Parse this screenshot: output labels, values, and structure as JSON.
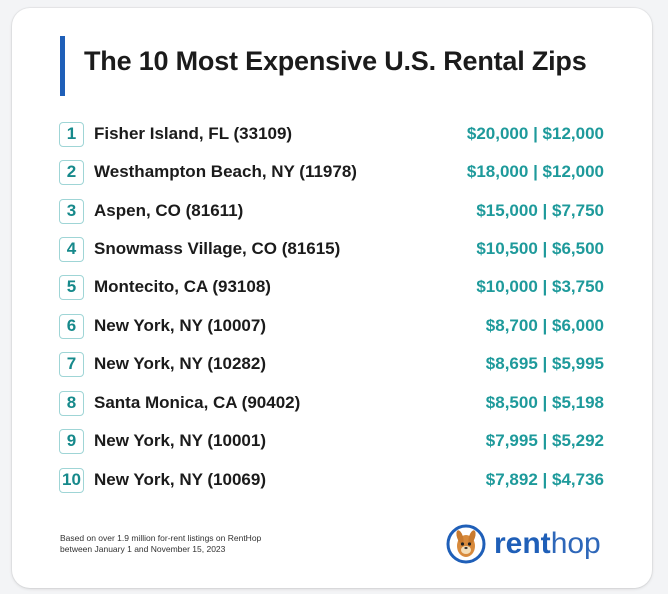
{
  "title": "The 10 Most Expensive U.S. Rental Zips",
  "rows": [
    {
      "rank": "1",
      "place": "Fisher Island, FL (33109)",
      "price": "$20,000 | $12,000"
    },
    {
      "rank": "2",
      "place": "Westhampton Beach, NY (11978)",
      "price": "$18,000 | $12,000"
    },
    {
      "rank": "3",
      "place": "Aspen, CO (81611)",
      "price": "$15,000 | $7,750"
    },
    {
      "rank": "4",
      "place": "Snowmass Village, CO (81615)",
      "price": "$10,500 | $6,500"
    },
    {
      "rank": "5",
      "place": "Montecito, CA (93108)",
      "price": "$10,000 | $3,750"
    },
    {
      "rank": "6",
      "place": "New York, NY (10007)",
      "price": "$8,700 | $6,000"
    },
    {
      "rank": "7",
      "place": "New York, NY (10282)",
      "price": "$8,695 | $5,995"
    },
    {
      "rank": "8",
      "place": "Santa Monica, CA (90402)",
      "price": "$8,500 | $5,198"
    },
    {
      "rank": "9",
      "place": "New York, NY (10001)",
      "price": "$7,995 | $5,292"
    },
    {
      "rank": "10",
      "place": "New York, NY (10069)",
      "price": "$7,892 | $4,736"
    }
  ],
  "footnote": {
    "line1": "Based on over 1.9 million for-rent listings on RentHop",
    "line2": "between January 1 and November 15, 2023"
  },
  "logo": {
    "icon": "renthop-mascot-icon",
    "text_bold": "rent",
    "text_light": "hop"
  },
  "colors": {
    "title_accent": "#1f5fb8",
    "rank_text": "#16898b",
    "price_text": "#1e9a9b",
    "logo_blue": "#1f5fb8"
  }
}
